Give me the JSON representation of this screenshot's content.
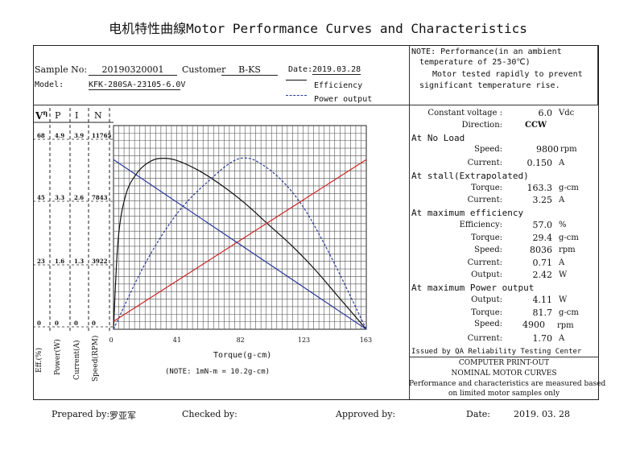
{
  "title": "电机特性曲線Motor Performance Curves and Characteristics",
  "header": {
    "sample_no_label": "Sample No:",
    "sample_no": "20190320001",
    "customer_label": "Customer",
    "customer": "B-KS",
    "date_label": "Date:",
    "date": "2019.03.28",
    "model_label": "Model:",
    "model": "KFK-280SA-23105-6.0V",
    "legend_efficiency": "Efficiency",
    "legend_power": "Power output"
  },
  "note": {
    "line1": "NOTE:  Performance(in an ambient",
    "line2": "temperature of 25-30℃)",
    "line3": "Motor tested rapidly to prevent",
    "line4": "significant temperature rise."
  },
  "axis_headers": {
    "eff": "V",
    "eff_sup": "η",
    "p": "P",
    "i": "I",
    "n": "N"
  },
  "y_ticks": {
    "eff": [
      "68",
      "45",
      "23",
      "0"
    ],
    "p": [
      "4.9",
      "3.3",
      "1.6",
      "0"
    ],
    "i": [
      "3.9",
      "2.6",
      "1.3",
      "0"
    ],
    "n": [
      "11765",
      "7843",
      "3922",
      "0"
    ]
  },
  "axis_titles": {
    "eff": "Eff.(%)",
    "p": "Power(W)",
    "i": "Current(A)",
    "n": "Speed(RPM)",
    "x": "Torque(g-cm)",
    "conversion": "(NOTE: 1mN-m = 10.2g-cm)"
  },
  "chart_data": {
    "type": "line",
    "xlabel": "Torque(g-cm)",
    "x_ticks": [
      "0",
      "41",
      "82",
      "123",
      "163"
    ],
    "xlim": [
      0,
      163.3
    ],
    "y_axes": [
      {
        "label": "Eff.(%)",
        "range": [
          0,
          68
        ]
      },
      {
        "label": "Power(W)",
        "range": [
          0,
          4.9
        ]
      },
      {
        "label": "Current(A)",
        "range": [
          0,
          3.9
        ]
      },
      {
        "label": "Speed(RPM)",
        "range": [
          0,
          11765
        ]
      }
    ],
    "series": [
      {
        "name": "Efficiency",
        "axis": "Eff.(%)",
        "color": "#111111",
        "x": [
          0,
          3,
          8,
          15,
          22,
          29.4,
          40,
          55,
          70,
          85,
          100,
          115,
          130,
          145,
          155,
          163.3
        ],
        "values": [
          0,
          30,
          45,
          52,
          55.5,
          57,
          56.5,
          53,
          48,
          42,
          35,
          28,
          20,
          11,
          5,
          0
        ]
      },
      {
        "name": "Power output",
        "axis": "Power(W)",
        "color": "#2b3a9c",
        "x": [
          0,
          20,
          40,
          60,
          81.7,
          100,
          120,
          140,
          163.3
        ],
        "values": [
          0,
          1.55,
          2.73,
          3.52,
          4.11,
          3.86,
          3.08,
          1.78,
          0
        ]
      },
      {
        "axis": "Current(A)",
        "color": "#cc2222",
        "x": [
          0,
          163.3
        ],
        "values": [
          0.15,
          3.25
        ]
      },
      {
        "axis": "Speed(RPM)",
        "color": "#2b3a9c",
        "x": [
          0,
          163.3
        ],
        "values": [
          9800,
          0
        ]
      }
    ]
  },
  "specs": {
    "constant_voltage": {
      "label": "Constant voltage :",
      "value": "6.0",
      "unit": "Vdc"
    },
    "direction": {
      "label": "Direction:",
      "value": "CCW"
    },
    "no_load": {
      "heading": "At No Load",
      "speed": {
        "label": "Speed:",
        "value": "9800",
        "unit": "rpm"
      },
      "current": {
        "label": "Current:",
        "value": "0.150",
        "unit": "A"
      }
    },
    "stall": {
      "heading": "At stall(Extrapolated)",
      "torque": {
        "label": "Torque:",
        "value": "163.3",
        "unit": "g-cm"
      },
      "current": {
        "label": "Current:",
        "value": "3.25",
        "unit": "A"
      }
    },
    "max_eff": {
      "heading": "At maximum efficiency",
      "efficiency": {
        "label": "Efficiency:",
        "value": "57.0",
        "unit": "%"
      },
      "torque": {
        "label": "Torque:",
        "value": "29.4",
        "unit": "g-cm"
      },
      "speed": {
        "label": "Speed:",
        "value": "8036",
        "unit": "rpm"
      },
      "current": {
        "label": "Current:",
        "value": "0.71",
        "unit": "A"
      },
      "output": {
        "label": "Output:",
        "value": "2.42",
        "unit": "W"
      }
    },
    "max_power": {
      "heading": "At maximum Power output",
      "output": {
        "label": "Output:",
        "value": "4.11",
        "unit": "W"
      },
      "torque": {
        "label": "Torque:",
        "value": "81.7",
        "unit": "g-cm"
      },
      "speed": {
        "label": "Speed:",
        "value": "4900",
        "unit": "rpm"
      },
      "current": {
        "label": "Current:",
        "value": "1.70",
        "unit": "A"
      }
    },
    "issued_by": "Issued by QA Reliability Testing Center"
  },
  "printout": {
    "line1": "COMPUTER PRINT-OUT",
    "line2": "NOMINAL MOTOR CURVES",
    "line3": "Performance and characteristics are measured based",
    "line4": "on limited motor samples only"
  },
  "footer": {
    "prepared_label": "Prepared by:",
    "prepared_value": "罗亚军",
    "checked_label": "Checked by:",
    "approved_label": "Approved by:",
    "date_label": "Date:",
    "date_value": "2019. 03. 28"
  }
}
